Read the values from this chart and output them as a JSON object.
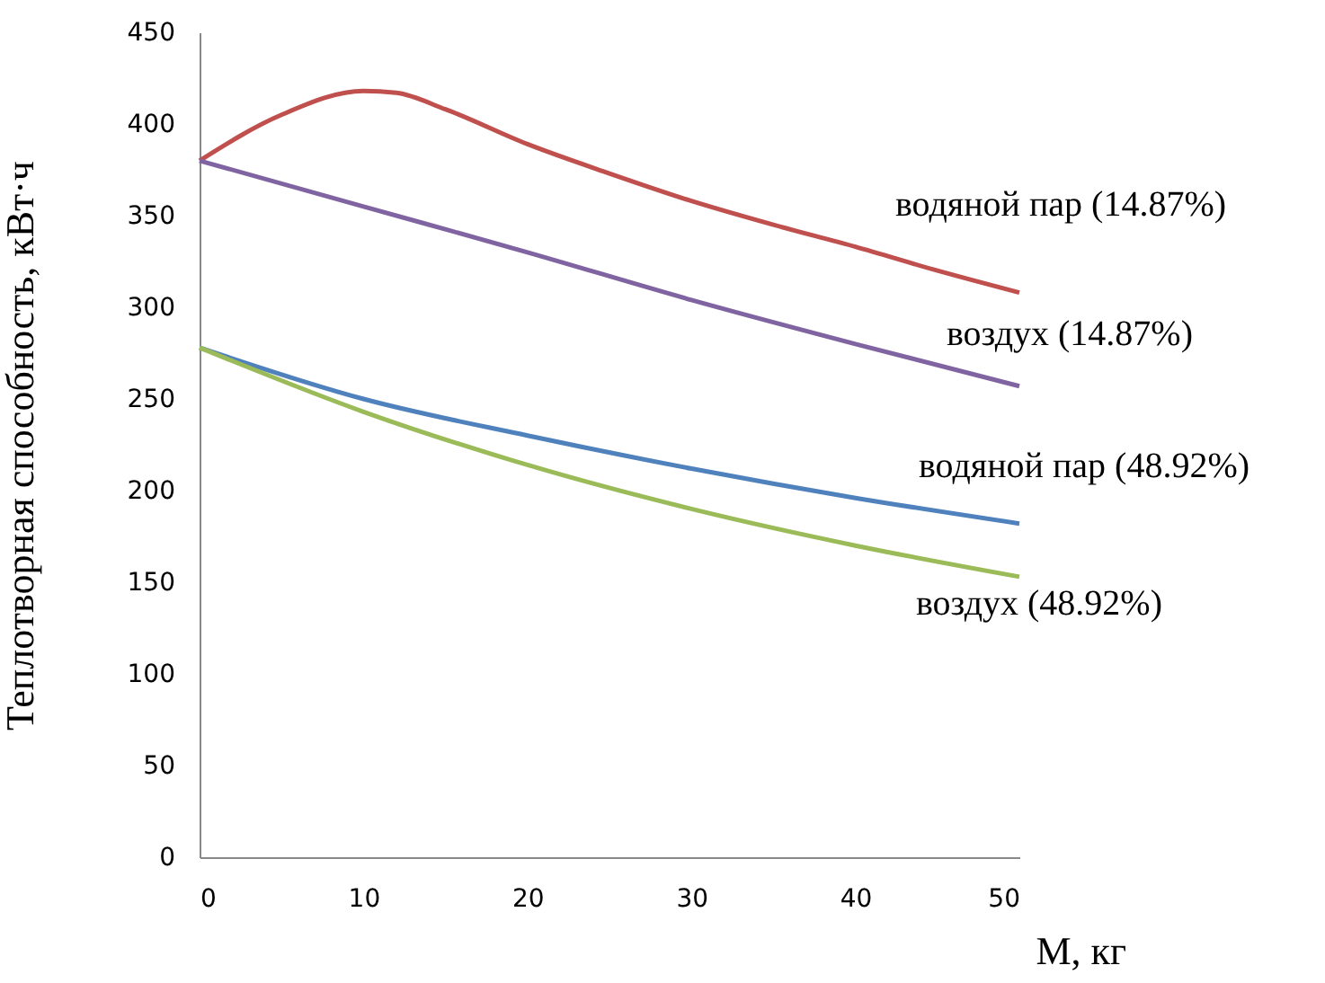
{
  "chart_data": {
    "type": "line",
    "xlabel": "М, кг",
    "ylabel": "Теплотворная способность, кВт·ч",
    "xlim": [
      0,
      50
    ],
    "xticks": [
      0,
      10,
      20,
      30,
      40,
      50
    ],
    "ylim": [
      0,
      450
    ],
    "yticks": [
      0,
      50,
      100,
      150,
      200,
      250,
      300,
      350,
      400,
      450
    ],
    "grid": false,
    "legend": false,
    "marker": "none",
    "line_style": "solid",
    "series": [
      {
        "name": "водяной пар (14.87%)",
        "color": "#c0504d",
        "x": [
          0,
          5,
          10,
          12,
          15,
          20,
          25,
          30,
          35,
          40,
          45,
          50
        ],
        "values": [
          380,
          405,
          418,
          417,
          408,
          389,
          373,
          358,
          345,
          333,
          320,
          308
        ]
      },
      {
        "name": "воздух (14.87%)",
        "color": "#8064a2",
        "x": [
          0,
          10,
          20,
          30,
          40,
          50
        ],
        "values": [
          380,
          355,
          330,
          304,
          280,
          257
        ]
      },
      {
        "name": "водяной пар (48.92%)",
        "color": "#4f81bd",
        "x": [
          0,
          10,
          20,
          30,
          40,
          50
        ],
        "values": [
          278,
          250,
          230,
          212,
          196,
          182
        ]
      },
      {
        "name": "воздух (48.92%)",
        "color": "#9bbb59",
        "x": [
          0,
          10,
          20,
          30,
          40,
          50
        ],
        "values": [
          278,
          243,
          214,
          190,
          170,
          153
        ]
      }
    ]
  }
}
